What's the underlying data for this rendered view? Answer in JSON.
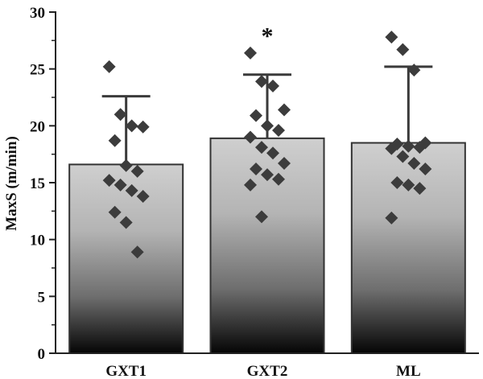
{
  "chart_data": {
    "type": "bar",
    "title": "",
    "xlabel": "",
    "ylabel": "MaxS (m/min)",
    "ylim": [
      0,
      30
    ],
    "yticks": [
      0,
      5,
      10,
      15,
      20,
      25,
      30
    ],
    "categories": [
      "GXT1",
      "GXT2",
      "ML"
    ],
    "values": [
      16.6,
      18.9,
      18.5
    ],
    "error_upper": [
      22.6,
      24.5,
      25.2
    ],
    "significance": [
      "",
      "*",
      ""
    ],
    "bar_fill": "vertical gradient light gray (top) to black (bottom)",
    "points": [
      [
        25.2,
        21.0,
        20.0,
        19.9,
        18.7,
        16.5,
        16.0,
        15.2,
        14.8,
        14.3,
        13.8,
        12.4,
        11.5,
        8.9
      ],
      [
        26.4,
        23.9,
        23.5,
        21.4,
        20.9,
        20.0,
        19.6,
        19.0,
        18.1,
        17.6,
        16.7,
        16.2,
        15.7,
        15.3,
        14.8,
        12.0
      ],
      [
        27.8,
        26.7,
        24.9,
        18.5,
        18.4,
        18.2,
        18.1,
        18.0,
        17.3,
        16.7,
        16.2,
        15.0,
        14.8,
        14.5,
        11.9
      ]
    ]
  },
  "colors": {
    "bar_top": "#c8c8c8",
    "bar_bottom": "#050505",
    "marker": "#3c3c3c",
    "axis": "#222222"
  }
}
